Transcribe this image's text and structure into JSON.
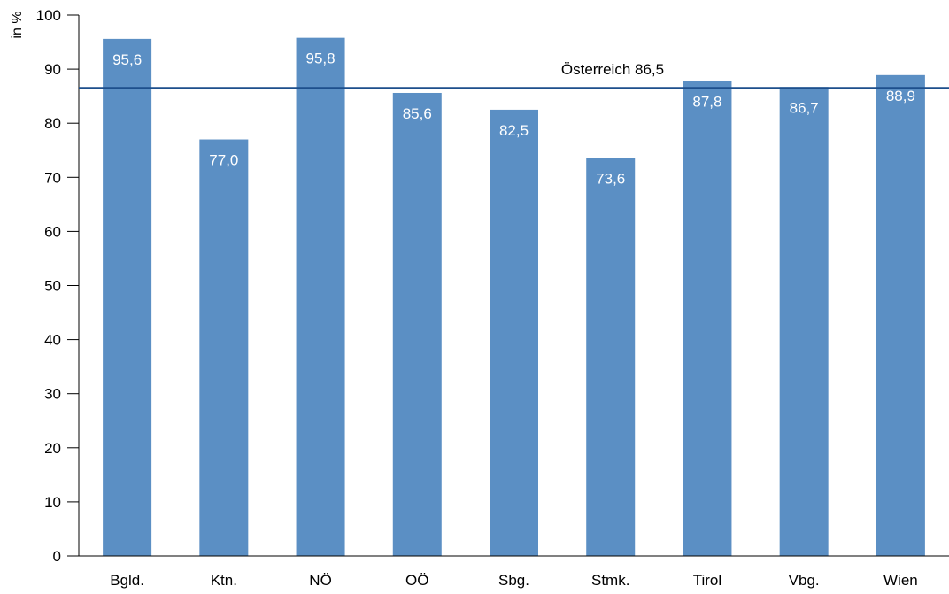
{
  "chart_data": {
    "type": "bar",
    "title": "",
    "xlabel": "",
    "ylabel": "in %",
    "ylim": [
      0,
      100
    ],
    "yticks": [
      0,
      10,
      20,
      30,
      40,
      50,
      60,
      70,
      80,
      90,
      100
    ],
    "grid": false,
    "categories": [
      "Bgld.",
      "Ktn.",
      "NÖ",
      "OÖ",
      "Sbg.",
      "Stmk.",
      "Tirol",
      "Vbg.",
      "Wien"
    ],
    "values": [
      95.6,
      77.0,
      95.8,
      85.6,
      82.5,
      73.6,
      87.8,
      86.7,
      88.9
    ],
    "value_labels": [
      "95,6",
      "77,0",
      "95,8",
      "85,6",
      "82,5",
      "73,6",
      "87,8",
      "86,7",
      "88,9"
    ],
    "reference_line": {
      "label": "Österreich 86,5",
      "value": 86.5
    },
    "colors": {
      "bar": "#5b8fc4",
      "reference_line": "#1d4f8c",
      "axis": "#000000"
    }
  }
}
